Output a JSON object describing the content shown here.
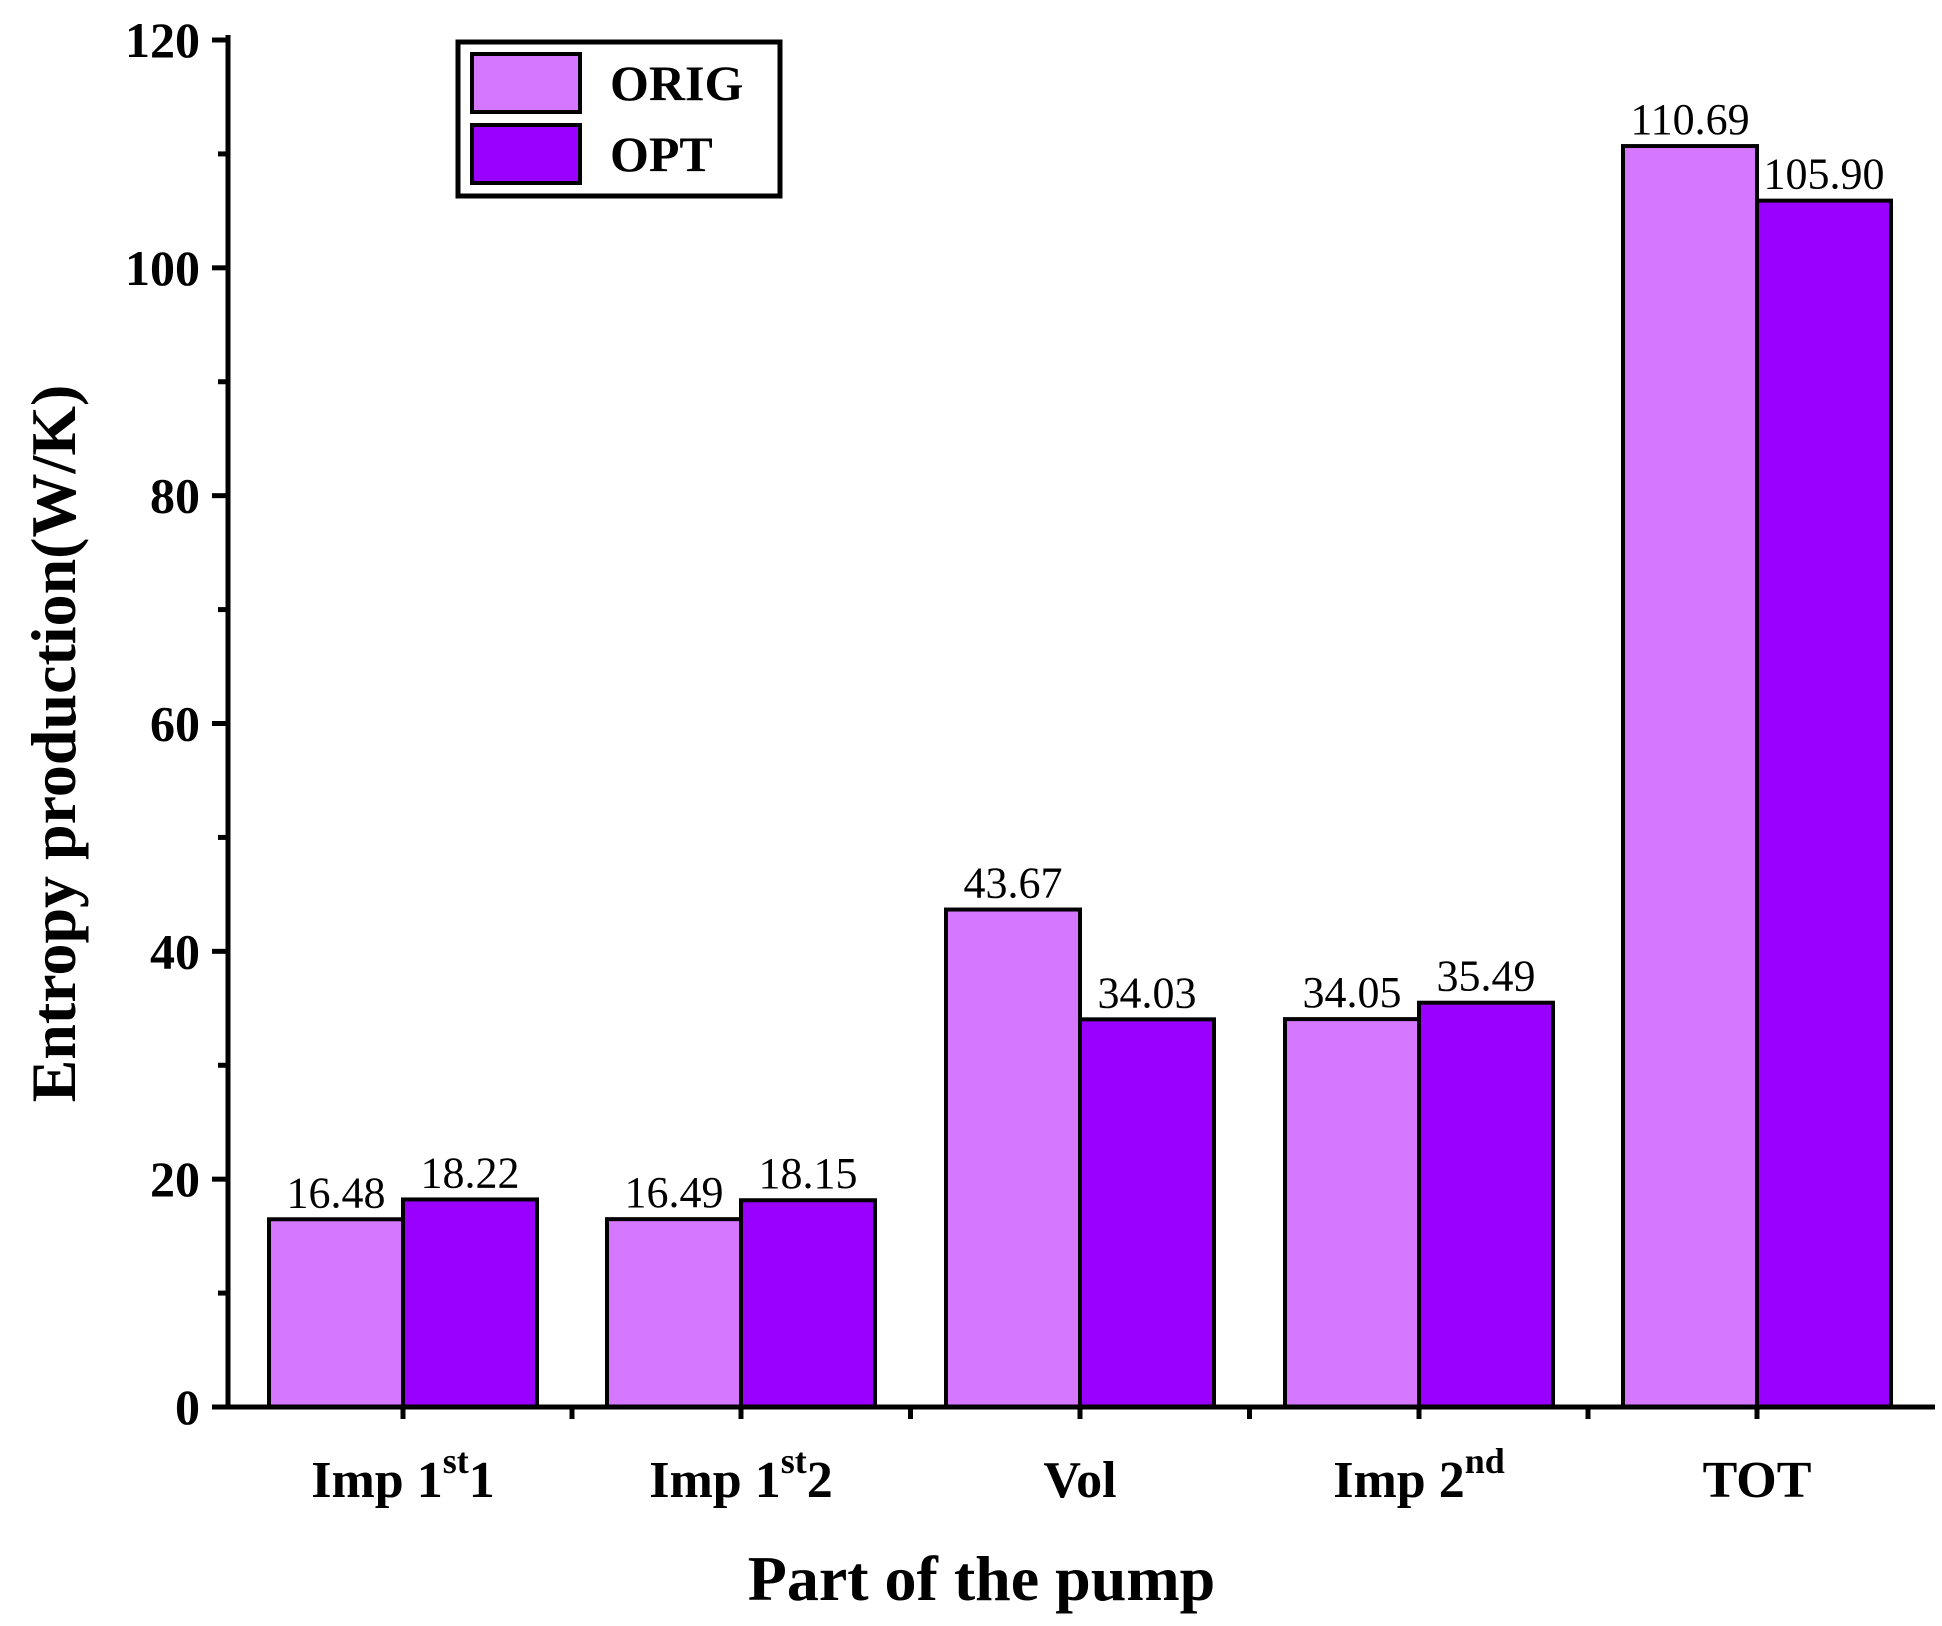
{
  "chart_data": {
    "type": "bar",
    "title": "",
    "xlabel": "Part of the pump",
    "ylabel": "Entropy production(W/K)",
    "ylim": [
      0,
      120
    ],
    "yticks": [
      0,
      20,
      40,
      60,
      80,
      100,
      120
    ],
    "grid": false,
    "legend_position": "top-left",
    "categories": [
      {
        "base": "Imp 1",
        "sup": "st",
        "suffix": "1"
      },
      {
        "base": "Imp 1",
        "sup": "st",
        "suffix": "2"
      },
      {
        "base": "Vol",
        "sup": "",
        "suffix": ""
      },
      {
        "base": "Imp 2",
        "sup": "nd",
        "suffix": ""
      },
      {
        "base": "TOT",
        "sup": "",
        "suffix": ""
      }
    ],
    "series": [
      {
        "name": "ORIG",
        "color": "#D678FF",
        "values": [
          16.48,
          16.49,
          43.67,
          34.05,
          110.69
        ],
        "labels": [
          "16.48",
          "16.49",
          "43.67",
          "34.05",
          "110.69"
        ]
      },
      {
        "name": "OPT",
        "color": "#9900FF",
        "values": [
          18.22,
          18.15,
          34.03,
          35.49,
          105.9
        ],
        "labels": [
          "18.22",
          "18.15",
          "34.03",
          "35.49",
          "105.90"
        ]
      }
    ]
  }
}
